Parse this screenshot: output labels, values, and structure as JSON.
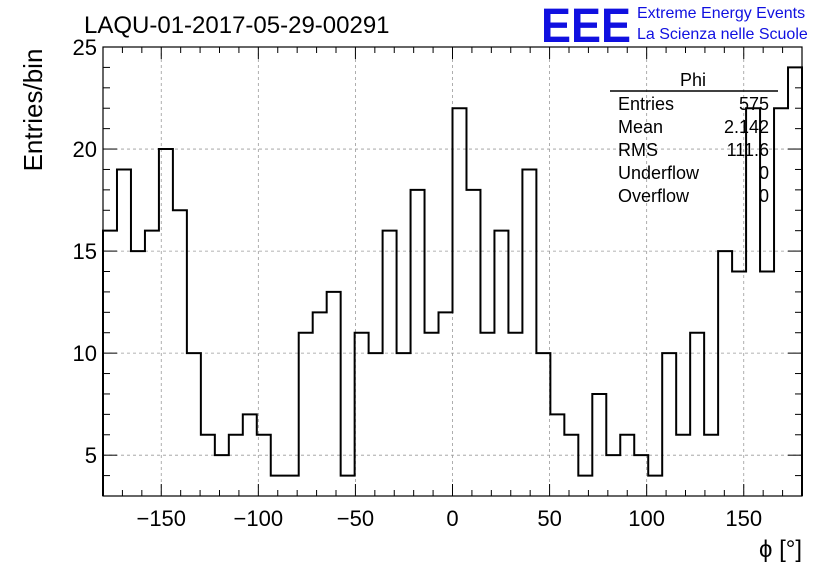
{
  "chart_data": {
    "type": "bar",
    "title": "LAQU-01-2017-05-29-00291",
    "xlabel": "ϕ [°]",
    "ylabel": "Entries/bin",
    "xlim": [
      -180,
      180
    ],
    "ylim": [
      3,
      25
    ],
    "bin_width": 7.2,
    "x_bin_edges_start": -180,
    "values": [
      16,
      19,
      15,
      16,
      20,
      17,
      10,
      6,
      5,
      6,
      7,
      6,
      4,
      4,
      11,
      12,
      13,
      4,
      11,
      10,
      16,
      10,
      18,
      11,
      12,
      22,
      18,
      11,
      16,
      11,
      19,
      10,
      7,
      6,
      4,
      8,
      5,
      6,
      5,
      4,
      10,
      6,
      11,
      6,
      15,
      14,
      22,
      14,
      22,
      24
    ],
    "x_ticks": [
      -150,
      -100,
      -50,
      0,
      50,
      100,
      150
    ],
    "x_tick_labels": [
      "−150",
      "−100",
      "−50",
      "0",
      "50",
      "100",
      "150"
    ],
    "y_ticks": [
      5,
      10,
      15,
      20,
      25
    ],
    "y_tick_labels": [
      "5",
      "10",
      "15",
      "20",
      "25"
    ],
    "grid": true,
    "legend": "none"
  },
  "stats_box": {
    "name": "Phi",
    "rows": [
      {
        "label": "Entries",
        "value": "575"
      },
      {
        "label": "Mean",
        "value": "2.142"
      },
      {
        "label": "RMS",
        "value": "111.6"
      },
      {
        "label": "Underflow",
        "value": "0"
      },
      {
        "label": "Overflow",
        "value": "0"
      }
    ]
  },
  "logo": {
    "mark": "EEE",
    "line1": "Extreme Energy Events",
    "line2": "La Scienza nelle Scuole",
    "color": "#1010e0"
  },
  "colors": {
    "histogram": "#000000",
    "grid": "#9a9a9a"
  }
}
